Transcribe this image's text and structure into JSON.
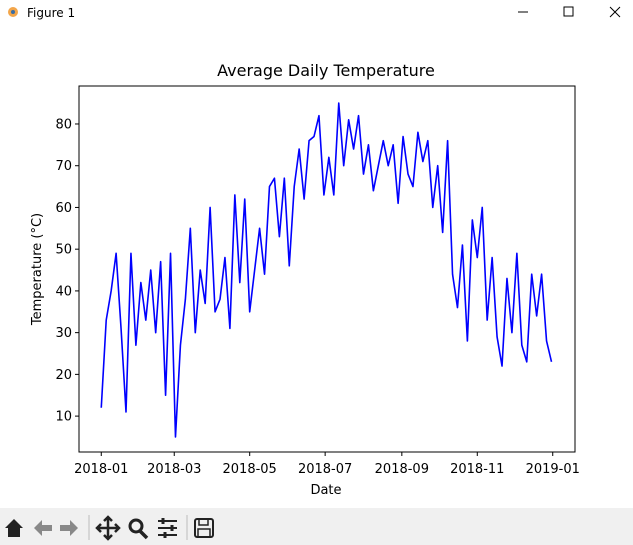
{
  "window": {
    "title": "Figure 1"
  },
  "chart_data": {
    "type": "line",
    "title": "Average Daily Temperature",
    "x_label": "Date",
    "y_label": "Temperature (°C)",
    "color": "#0000ff",
    "x": [
      "2018-01-01",
      "2018-01-05",
      "2018-01-09",
      "2018-01-13",
      "2018-01-17",
      "2018-01-21",
      "2018-01-25",
      "2018-01-29",
      "2018-02-02",
      "2018-02-06",
      "2018-02-10",
      "2018-02-14",
      "2018-02-18",
      "2018-02-22",
      "2018-02-26",
      "2018-03-02",
      "2018-03-06",
      "2018-03-10",
      "2018-03-14",
      "2018-03-18",
      "2018-03-22",
      "2018-03-26",
      "2018-03-30",
      "2018-04-03",
      "2018-04-07",
      "2018-04-11",
      "2018-04-15",
      "2018-04-19",
      "2018-04-23",
      "2018-04-27",
      "2018-05-01",
      "2018-05-05",
      "2018-05-09",
      "2018-05-13",
      "2018-05-17",
      "2018-05-21",
      "2018-05-25",
      "2018-05-29",
      "2018-06-02",
      "2018-06-06",
      "2018-06-10",
      "2018-06-14",
      "2018-06-18",
      "2018-06-22",
      "2018-06-26",
      "2018-06-30",
      "2018-07-04",
      "2018-07-08",
      "2018-07-12",
      "2018-07-16",
      "2018-07-20",
      "2018-07-24",
      "2018-07-28",
      "2018-08-01",
      "2018-08-05",
      "2018-08-09",
      "2018-08-13",
      "2018-08-17",
      "2018-08-21",
      "2018-08-25",
      "2018-08-29",
      "2018-09-02",
      "2018-09-06",
      "2018-09-10",
      "2018-09-14",
      "2018-09-18",
      "2018-09-22",
      "2018-09-26",
      "2018-09-30",
      "2018-10-04",
      "2018-10-08",
      "2018-10-12",
      "2018-10-16",
      "2018-10-20",
      "2018-10-24",
      "2018-10-28",
      "2018-11-01",
      "2018-11-05",
      "2018-11-09",
      "2018-11-13",
      "2018-11-17",
      "2018-11-21",
      "2018-11-25",
      "2018-11-29",
      "2018-12-03",
      "2018-12-07",
      "2018-12-11",
      "2018-12-15",
      "2018-12-19",
      "2018-12-23",
      "2018-12-27",
      "2018-12-31"
    ],
    "values": [
      12,
      33,
      40,
      49,
      31,
      11,
      49,
      27,
      42,
      33,
      45,
      30,
      47,
      15,
      49,
      5,
      27,
      38,
      55,
      30,
      45,
      37,
      60,
      35,
      38,
      48,
      31,
      63,
      42,
      62,
      35,
      45,
      55,
      44,
      65,
      67,
      53,
      67,
      46,
      65,
      74,
      62,
      76,
      77,
      82,
      63,
      72,
      63,
      85,
      70,
      81,
      74,
      82,
      68,
      75,
      64,
      70,
      76,
      70,
      75,
      61,
      77,
      68,
      65,
      78,
      71,
      76,
      60,
      70,
      54,
      76,
      44,
      36,
      51,
      28,
      57,
      48,
      60,
      33,
      48,
      29,
      22,
      43,
      30,
      49,
      27,
      23,
      44,
      34,
      44,
      28,
      23
    ],
    "xlim": [
      "2017-12-14",
      "2019-01-19"
    ],
    "xticks": [
      "2018-01",
      "2018-03",
      "2018-05",
      "2018-07",
      "2018-09",
      "2018-11",
      "2019-01"
    ],
    "ylim": [
      1.4,
      89.1
    ],
    "yticks": [
      10,
      20,
      30,
      40,
      50,
      60,
      70,
      80
    ]
  }
}
